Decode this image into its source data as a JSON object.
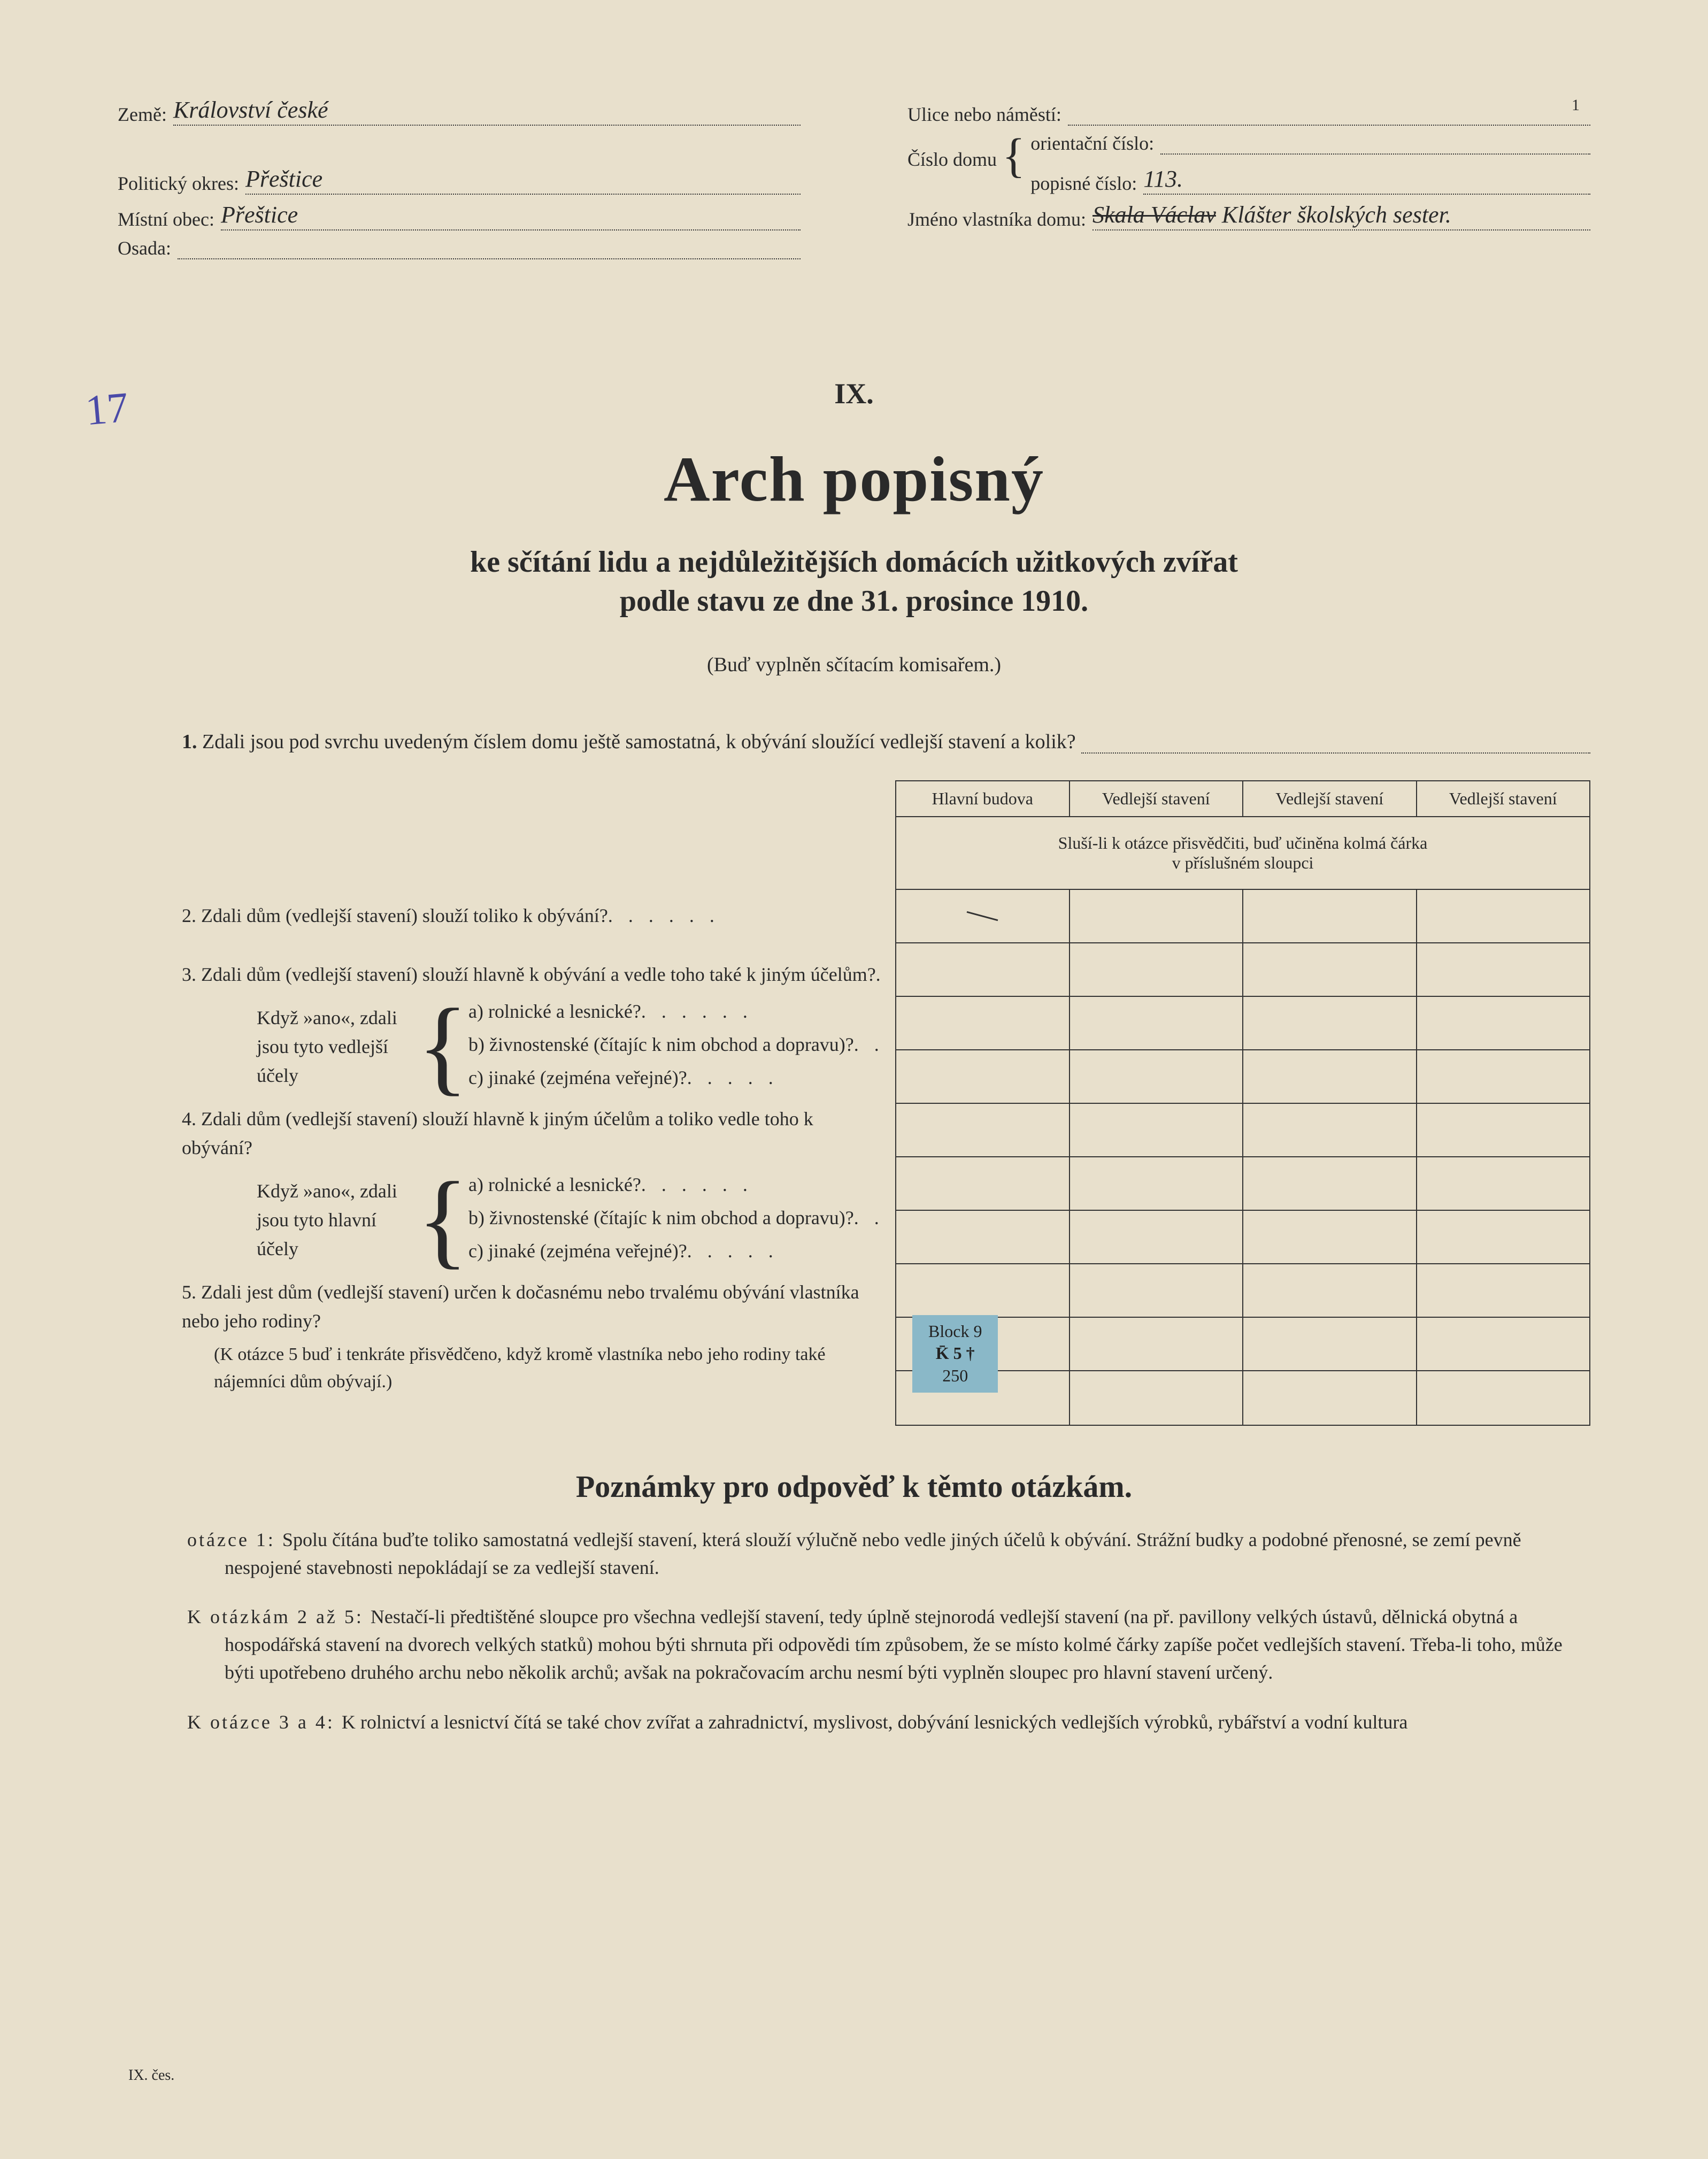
{
  "page_number": "1",
  "header": {
    "left": [
      {
        "label": "Země:",
        "value": "Království české"
      },
      {
        "label": "Politický okres:",
        "value": "Přeštice"
      },
      {
        "label": "Místní obec:",
        "value": "Přeštice"
      },
      {
        "label": "Osada:",
        "value": ""
      }
    ],
    "right": {
      "ulice": {
        "label": "Ulice nebo náměstí:",
        "value": ""
      },
      "cislo_label": "Číslo domu",
      "orient": {
        "label": "orientační číslo:",
        "value": ""
      },
      "popis": {
        "label": "popisné číslo:",
        "value": "113."
      },
      "owner": {
        "label": "Jméno vlastníka domu:",
        "struck": "Skala Václav",
        "value": "Klášter školských sester."
      }
    }
  },
  "annotation": "17",
  "roman": "IX.",
  "title": "Arch popisný",
  "subtitle_l1": "ke sčítání lidu a nejdůležitějších domácích užitkových zvířat",
  "subtitle_l2": "podle stavu ze dne 31. prosince 1910.",
  "filled_by": "(Buď vyplněn sčítacím komisařem.)",
  "q1_label": "1.",
  "q1_text": "Zdali jsou pod svrchu uvedeným číslem domu ještě samostatná, k obývání sloužící vedlejší stavení a kolik?",
  "table_headers": [
    "Hlavní budova",
    "Vedlejší stavení",
    "Vedlejší stavení",
    "Vedlejší stavení"
  ],
  "table_hint": "Sluší-li k otázce přisvědčiti, buď učiněna kolmá čárka\nv příslušném sloupci",
  "table_rows": 10,
  "tick_row": 0,
  "tick_col": 0,
  "questions": {
    "q2": "2. Zdali dům (vedlejší stavení) slouží toliko k obývání?",
    "q3": "3. Zdali dům (vedlejší stavení) slouží hlavně k obývání a vedle toho také k jiným účelům?",
    "sg1_label": "Když »ano«, zdali jsou tyto vedlejší účely",
    "opt_a": "a) rolnické a lesnické?",
    "opt_b": "b) živnostenské (čítajíc k nim obchod a dopravu)?",
    "opt_c": "c) jinaké (zejména veřejné)?",
    "q4": "4. Zdali dům (vedlejší stavení) slouží hlavně k jiným účelům a toliko vedle toho k obývání?",
    "sg2_label": "Když »ano«, zdali jsou tyto hlavní účely",
    "q5": "5. Zdali jest dům (vedlejší stavení) určen k dočasnému nebo trvalému obývání vlastníka nebo jeho rodiny?",
    "q5_note": "(K otázce 5 buď i tenkráte přisvědčeno, když kromě vlastníka nebo jeho rodiny také nájemníci dům obývají.)"
  },
  "stamp": {
    "l1": "Block 9",
    "l2": "K̄ 5 †",
    "l3": "250"
  },
  "notes_title": "Poznámky pro odpověď k těmto otázkám.",
  "notes": [
    {
      "t": "otázce 1:",
      "body": "Spolu čítána buďte toliko samostatná vedlejší stavení, která slouží výlučně nebo vedle jiných účelů k obývání. Strážní budky a podobné přenosné, se zemí pevně nespojené stavebnosti nepokládají se za vedlejší stavení."
    },
    {
      "t": "K otázkám 2 až 5:",
      "body": "Nestačí-li předtištěné sloupce pro všechna vedlejší stavení, tedy úplně stejnorodá vedlejší stavení (na př. pavillony velkých ústavů, dělnická obytná a hospodářská stavení na dvorech velkých statků) mohou býti shrnuta při odpovědi tím způsobem, že se místo kolmé čárky zapíše počet vedlejších stavení. Třeba-li toho, může býti upotřebeno druhého archu nebo několik archů; avšak na pokračovacím archu nesmí býti vyplněn sloupec pro hlavní stavení určený."
    },
    {
      "t": "K otázce 3 a 4:",
      "body": "K rolnictví a lesnictví čítá se také chov zvířat a zahradnictví, myslivost, dobývání lesnických vedlejších výrobků, rybářství a vodní kultura"
    }
  ],
  "footer": "IX. čes.",
  "colors": {
    "bg": "#e8e0cc",
    "text": "#2a2a2a",
    "ink_blue": "#4a4aa8",
    "stamp_bg": "#8ab8c8"
  }
}
